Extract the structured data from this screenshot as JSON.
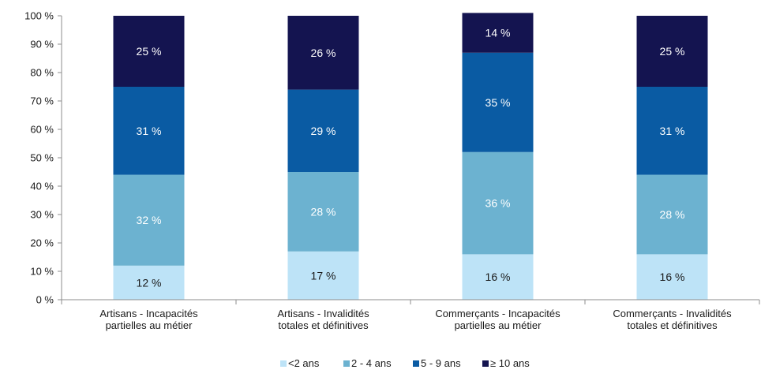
{
  "chart_data": {
    "type": "bar",
    "stacked": true,
    "percent_stacked": true,
    "categories": [
      [
        "Artisans - Incapacités",
        "partielles au métier"
      ],
      [
        "Artisans - Invalidités",
        "totales et définitives"
      ],
      [
        "Commerçants - Incapacités",
        "partielles au métier"
      ],
      [
        "Commerçants - Invalidités",
        "totales et définitives"
      ]
    ],
    "series": [
      {
        "name": "<2 ans",
        "color": "#bde3f7",
        "label_color": "#1a1a1a",
        "values": [
          12,
          17,
          16,
          16
        ],
        "labels": [
          "12 %",
          "17 %",
          "16 %",
          "16 %"
        ]
      },
      {
        "name": "2 - 4 ans",
        "color": "#6cb2d0",
        "label_color": "#ffffff",
        "values": [
          32,
          28,
          36,
          28
        ],
        "labels": [
          "32 %",
          "28 %",
          "36 %",
          "28 %"
        ]
      },
      {
        "name": "5 - 9 ans",
        "color": "#0a5ba3",
        "label_color": "#ffffff",
        "values": [
          31,
          29,
          35,
          31
        ],
        "labels": [
          "31 %",
          "29 %",
          "35 %",
          "31 %"
        ]
      },
      {
        "name": "≥ 10 ans",
        "color": "#141450",
        "label_color": "#ffffff",
        "values": [
          25,
          26,
          14,
          25
        ],
        "labels": [
          "25 %",
          "26 %",
          "14 %",
          "25 %"
        ]
      }
    ],
    "y_ticks": [
      "0 %",
      "10 %",
      "20 %",
      "30 %",
      "40 %",
      "50 %",
      "60 %",
      "70 %",
      "80 %",
      "90 %",
      "100 %"
    ],
    "ylim": [
      0,
      100
    ],
    "grid": false,
    "legend_position": "bottom"
  }
}
